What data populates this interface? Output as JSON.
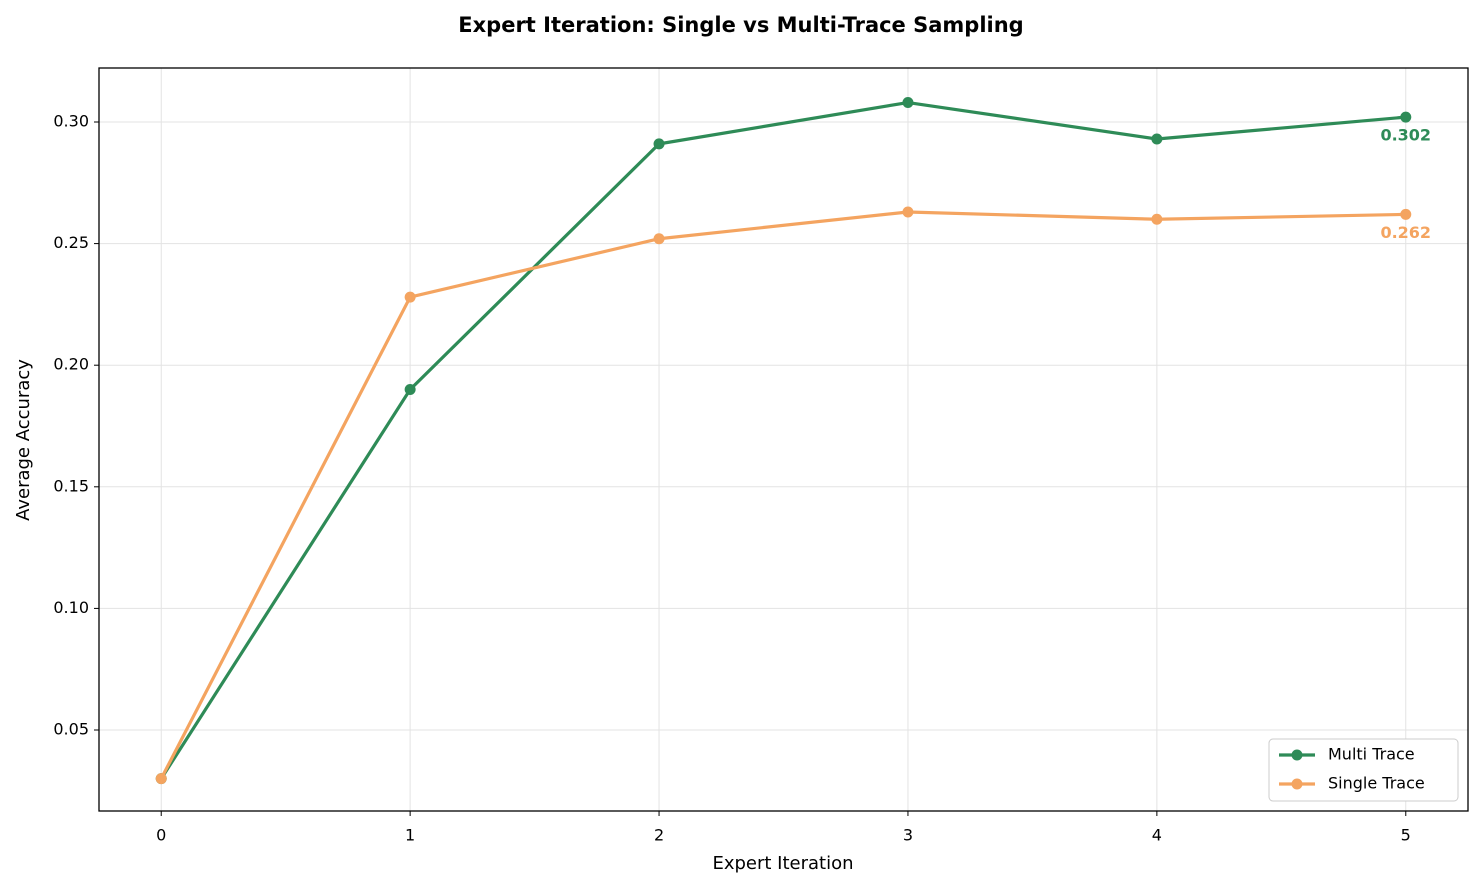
{
  "chart_data": {
    "type": "line",
    "title": "Expert Iteration: Single vs Multi-Trace Sampling",
    "x_label": "Expert Iteration",
    "y_label": "Average Accuracy",
    "x": [
      0,
      1,
      2,
      3,
      4,
      5
    ],
    "series": [
      {
        "name": "Multi Trace",
        "color": "#2e8b57",
        "values": [
          0.03,
          0.19,
          0.291,
          0.308,
          0.293,
          0.302
        ]
      },
      {
        "name": "Single Trace",
        "color": "#f4a460",
        "values": [
          0.03,
          0.228,
          0.252,
          0.263,
          0.26,
          0.262
        ]
      }
    ],
    "xlim": [
      -0.25,
      5.25
    ],
    "xticks": [
      0,
      1,
      2,
      3,
      4,
      5
    ],
    "ylim": [
      0.0167,
      0.3222
    ],
    "yticks": [
      0.05,
      {
        "value": 0.1,
        "label": "0.10"
      },
      0.15,
      {
        "value": 0.2,
        "label": "0.20"
      },
      0.25,
      {
        "value": 0.3,
        "label": "0.30"
      }
    ],
    "grid": true,
    "legend": "lower right"
  }
}
